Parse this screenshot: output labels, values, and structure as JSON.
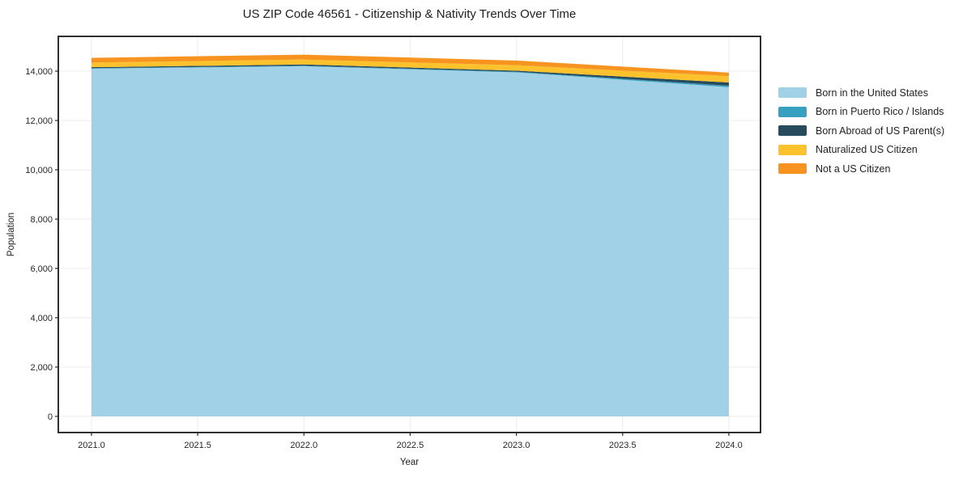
{
  "title": "US ZIP Code 46561 - Citizenship & Nativity Trends Over Time",
  "chart_data": {
    "type": "area",
    "stacked": true,
    "title": "US ZIP Code 46561 - Citizenship & Nativity Trends Over Time",
    "xlabel": "Year",
    "ylabel": "Population",
    "x": [
      2021,
      2022,
      2023,
      2024
    ],
    "series": [
      {
        "name": "Born in the United States",
        "color": "#a1d1e6",
        "values": [
          14100,
          14200,
          13950,
          13350
        ]
      },
      {
        "name": "Born in Puerto Rico / Islands",
        "color": "#379fc0",
        "values": [
          20,
          20,
          25,
          60
        ]
      },
      {
        "name": "Born Abroad of US Parent(s)",
        "color": "#264b5c",
        "values": [
          40,
          50,
          45,
          130
        ]
      },
      {
        "name": "Naturalized US Citizen",
        "color": "#fcc22d",
        "values": [
          190,
          200,
          220,
          260
        ]
      },
      {
        "name": "Not a US Citizen",
        "color": "#f79420",
        "values": [
          190,
          200,
          190,
          140
        ]
      }
    ],
    "x_ticks": [
      2021.0,
      2021.5,
      2022.0,
      2022.5,
      2023.0,
      2023.5,
      2024.0
    ],
    "x_tick_labels": [
      "2021.0",
      "2021.5",
      "2022.0",
      "2022.5",
      "2023.0",
      "2023.5",
      "2024.0"
    ],
    "y_ticks": [
      0,
      2000,
      4000,
      6000,
      8000,
      10000,
      12000,
      14000
    ],
    "y_tick_labels": [
      "0",
      "2,000",
      "4,000",
      "6,000",
      "8,000",
      "10,000",
      "12,000",
      "14,000"
    ],
    "xlim": [
      2020.844,
      2024.149
    ],
    "ylim": [
      -656,
      15410
    ],
    "grid": true,
    "grid_color": "#ececec",
    "spine_color": "#1a1a1a",
    "tick_color": "#262626",
    "legend_position": "right"
  }
}
